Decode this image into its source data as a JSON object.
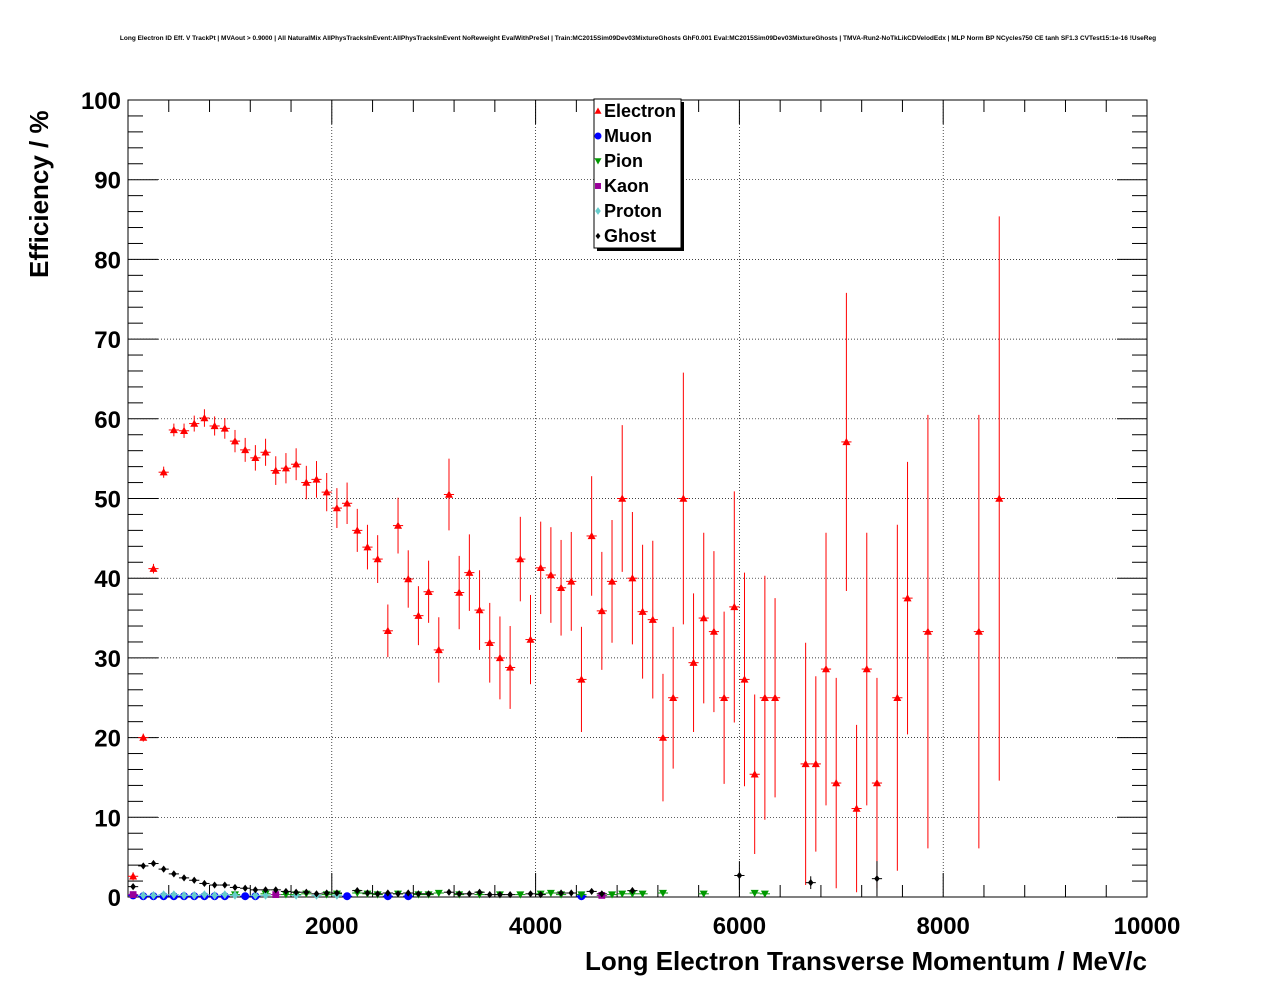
{
  "chart_data": {
    "type": "scatter",
    "title": "Long Electron ID Eff. V TrackPt | MVAout > 0.9000 | All NaturalMix AllPhysTracksInEvent:AllPhysTracksInEvent NoReweight EvalWithPreSel | Train:MC2015Sim09Dev03MixtureGhosts GhF0.001 Eval:MC2015Sim09Dev03MixtureGhosts | TMVA-Run2-NoTkLikCDVelodEdx | MLP Norm BP NCycles750 CE tanh SF1.3 CVTest15:1e-16 !UseReg",
    "xlabel": "Long Electron Transverse Momentum / MeV/c",
    "ylabel": "Efficiency / %",
    "xlim": [
      0,
      10000
    ],
    "ylim": [
      0,
      100
    ],
    "x_ticks": [
      2000,
      4000,
      6000,
      8000,
      10000
    ],
    "x_tick_labels": [
      "2000",
      "4000",
      "6000",
      "8000",
      "10000"
    ],
    "y_ticks": [
      0,
      10,
      20,
      30,
      40,
      50,
      60,
      70,
      80,
      90,
      100
    ],
    "y_tick_labels": [
      "0",
      "10",
      "20",
      "30",
      "40",
      "50",
      "60",
      "70",
      "80",
      "90",
      "100"
    ],
    "grid": true,
    "legend_position": "top-center",
    "series": [
      {
        "name": "Electron",
        "color": "#ff0000",
        "marker": "triangle-up",
        "points": [
          [
            50,
            2.6,
            0.5
          ],
          [
            150,
            20,
            0.5
          ],
          [
            250,
            41.2,
            0.6
          ],
          [
            350,
            53.3,
            0.7
          ],
          [
            450,
            58.6,
            0.8
          ],
          [
            550,
            58.5,
            0.9
          ],
          [
            650,
            59.4,
            1.0
          ],
          [
            750,
            60.1,
            1.1
          ],
          [
            850,
            59.1,
            1.2
          ],
          [
            950,
            58.8,
            1.3
          ],
          [
            1050,
            57.2,
            1.4
          ],
          [
            1150,
            56.1,
            1.5
          ],
          [
            1250,
            55.1,
            1.6
          ],
          [
            1350,
            55.8,
            1.7
          ],
          [
            1450,
            53.5,
            1.8
          ],
          [
            1550,
            53.8,
            1.9
          ],
          [
            1650,
            54.3,
            2.0
          ],
          [
            1750,
            52,
            2.1
          ],
          [
            1850,
            52.4,
            2.3
          ],
          [
            1950,
            50.8,
            2.4
          ],
          [
            2050,
            48.8,
            2.5
          ],
          [
            2150,
            49.4,
            2.6
          ],
          [
            2250,
            46,
            2.7
          ],
          [
            2350,
            43.9,
            2.8
          ],
          [
            2450,
            42.4,
            3.0
          ],
          [
            2550,
            33.4,
            3.3
          ],
          [
            2650,
            46.6,
            3.5
          ],
          [
            2750,
            39.9,
            3.6
          ],
          [
            2850,
            35.3,
            3.7
          ],
          [
            2950,
            38.3,
            3.9
          ],
          [
            3050,
            31,
            4.1
          ],
          [
            3150,
            50.5,
            4.5
          ],
          [
            3250,
            38.2,
            4.6
          ],
          [
            3350,
            40.7,
            4.8
          ],
          [
            3450,
            36,
            5.0
          ],
          [
            3550,
            31.9,
            5.0
          ],
          [
            3650,
            30,
            5.2
          ],
          [
            3750,
            28.8,
            5.2
          ],
          [
            3850,
            42.4,
            5.3
          ],
          [
            3950,
            32.3,
            5.6
          ],
          [
            4050,
            41.3,
            5.8
          ],
          [
            4150,
            40.4,
            6.0
          ],
          [
            4250,
            38.8,
            6.0
          ],
          [
            4350,
            39.6,
            6.2
          ],
          [
            4450,
            27.3,
            6.6
          ],
          [
            4550,
            45.3,
            7.5
          ],
          [
            4650,
            35.9,
            7.4
          ],
          [
            4750,
            39.6,
            7.7
          ],
          [
            4850,
            50,
            9.2
          ],
          [
            4950,
            40,
            8.3
          ],
          [
            5050,
            35.8,
            8.4
          ],
          [
            5150,
            34.8,
            9.9
          ],
          [
            5250,
            20,
            8.0
          ],
          [
            5350,
            25,
            8.9
          ],
          [
            5450,
            50,
            15.8
          ],
          [
            5550,
            29.4,
            8.7
          ],
          [
            5650,
            35,
            10.7
          ],
          [
            5750,
            33.3,
            10.1
          ],
          [
            5850,
            25,
            10.8
          ],
          [
            5950,
            36.4,
            14.5
          ],
          [
            6050,
            27.3,
            13.4
          ],
          [
            6150,
            15.4,
            10.0
          ],
          [
            6250,
            25,
            15.3
          ],
          [
            6350,
            25,
            12.5
          ],
          [
            6650,
            16.7,
            15.2
          ],
          [
            6750,
            16.7,
            11.0
          ],
          [
            6850,
            28.6,
            17.1
          ],
          [
            6950,
            14.3,
            13.2
          ],
          [
            7050,
            57.1,
            18.7
          ],
          [
            7150,
            11.1,
            10.5
          ],
          [
            7250,
            28.6,
            17.1
          ],
          [
            7350,
            14.3,
            13.2
          ],
          [
            7550,
            25,
            21.7
          ],
          [
            7650,
            37.5,
            17.1
          ],
          [
            7850,
            33.3,
            27.2
          ],
          [
            8350,
            33.3,
            27.2
          ],
          [
            8550,
            50,
            35.4
          ]
        ]
      },
      {
        "name": "Muon",
        "color": "#0000ff",
        "marker": "circle",
        "points": [
          [
            50,
            0.2,
            0.05
          ],
          [
            150,
            0.1,
            0.05
          ],
          [
            250,
            0.1,
            0.05
          ],
          [
            350,
            0.1,
            0.05
          ],
          [
            450,
            0.1,
            0.05
          ],
          [
            550,
            0.1,
            0.05
          ],
          [
            650,
            0.1,
            0.05
          ],
          [
            750,
            0.1,
            0.05
          ],
          [
            850,
            0.1,
            0.05
          ],
          [
            950,
            0.1,
            0.05
          ],
          [
            1150,
            0.1,
            0.05
          ],
          [
            1250,
            0.1,
            0.05
          ],
          [
            2150,
            0.1,
            0.1
          ],
          [
            2550,
            0.1,
            0.1
          ],
          [
            2750,
            0.1,
            0.1
          ],
          [
            4450,
            0.1,
            0.2
          ]
        ]
      },
      {
        "name": "Pion",
        "color": "#009900",
        "marker": "triangle-down",
        "points": [
          [
            1050,
            0.3,
            0.05
          ],
          [
            1350,
            0.4,
            0.05
          ],
          [
            1550,
            0.3,
            0.05
          ],
          [
            1650,
            0.3,
            0.05
          ],
          [
            1750,
            0.4,
            0.05
          ],
          [
            1950,
            0.3,
            0.05
          ],
          [
            2050,
            0.4,
            0.05
          ],
          [
            2250,
            0.5,
            0.1
          ],
          [
            2350,
            0.4,
            0.1
          ],
          [
            2450,
            0.3,
            0.1
          ],
          [
            2650,
            0.4,
            0.1
          ],
          [
            2850,
            0.3,
            0.1
          ],
          [
            2950,
            0.3,
            0.1
          ],
          [
            3050,
            0.5,
            0.1
          ],
          [
            3250,
            0.3,
            0.1
          ],
          [
            3450,
            0.3,
            0.1
          ],
          [
            3650,
            0.3,
            0.1
          ],
          [
            3850,
            0.3,
            0.1
          ],
          [
            4050,
            0.4,
            0.1
          ],
          [
            4150,
            0.5,
            0.1
          ],
          [
            4250,
            0.3,
            0.1
          ],
          [
            4450,
            0.3,
            0.1
          ],
          [
            4750,
            0.3,
            0.1
          ],
          [
            4850,
            0.4,
            0.1
          ],
          [
            4950,
            0.4,
            0.1
          ],
          [
            5050,
            0.4,
            0.1
          ],
          [
            5250,
            0.5,
            0.2
          ],
          [
            5650,
            0.4,
            0.2
          ],
          [
            6150,
            0.5,
            0.2
          ],
          [
            6250,
            0.4,
            0.2
          ]
        ]
      },
      {
        "name": "Kaon",
        "color": "#990099",
        "marker": "square",
        "points": [
          [
            50,
            0.3,
            0.05
          ],
          [
            1450,
            0.3,
            0.05
          ],
          [
            4650,
            0.2,
            0.1
          ]
        ]
      },
      {
        "name": "Proton",
        "color": "#66cccc",
        "marker": "diamond",
        "points": [
          [
            150,
            0.2,
            0.05
          ],
          [
            250,
            0.2,
            0.05
          ],
          [
            350,
            0.3,
            0.05
          ],
          [
            450,
            0.3,
            0.05
          ],
          [
            550,
            0.2,
            0.05
          ],
          [
            650,
            0.2,
            0.05
          ],
          [
            750,
            0.3,
            0.05
          ],
          [
            850,
            0.2,
            0.05
          ],
          [
            950,
            0.3,
            0.05
          ],
          [
            1050,
            0.2,
            0.05
          ],
          [
            1250,
            0.2,
            0.05
          ],
          [
            1350,
            0.2,
            0.05
          ],
          [
            1650,
            0.2,
            0.05
          ],
          [
            1850,
            0.2,
            0.05
          ],
          [
            2050,
            0.2,
            0.05
          ]
        ]
      },
      {
        "name": "Ghost",
        "color": "#000000",
        "marker": "star",
        "points": [
          [
            50,
            1.3,
            0.1
          ],
          [
            150,
            3.9,
            0.2
          ],
          [
            250,
            4.2,
            0.2
          ],
          [
            350,
            3.5,
            0.2
          ],
          [
            450,
            2.9,
            0.2
          ],
          [
            550,
            2.4,
            0.2
          ],
          [
            650,
            2.1,
            0.2
          ],
          [
            750,
            1.7,
            0.2
          ],
          [
            850,
            1.5,
            0.2
          ],
          [
            950,
            1.5,
            0.2
          ],
          [
            1050,
            1.2,
            0.2
          ],
          [
            1150,
            1.1,
            0.2
          ],
          [
            1250,
            0.9,
            0.2
          ],
          [
            1350,
            0.9,
            0.2
          ],
          [
            1450,
            0.9,
            0.2
          ],
          [
            1550,
            0.7,
            0.2
          ],
          [
            1650,
            0.6,
            0.2
          ],
          [
            1750,
            0.6,
            0.2
          ],
          [
            1850,
            0.4,
            0.2
          ],
          [
            1950,
            0.5,
            0.2
          ],
          [
            2050,
            0.5,
            0.2
          ],
          [
            2250,
            0.8,
            0.2
          ],
          [
            2350,
            0.5,
            0.2
          ],
          [
            2450,
            0.4,
            0.2
          ],
          [
            2550,
            0.5,
            0.2
          ],
          [
            2650,
            0.4,
            0.2
          ],
          [
            2750,
            0.5,
            0.2
          ],
          [
            2850,
            0.4,
            0.2
          ],
          [
            2950,
            0.4,
            0.2
          ],
          [
            3150,
            0.6,
            0.2
          ],
          [
            3250,
            0.4,
            0.2
          ],
          [
            3350,
            0.4,
            0.2
          ],
          [
            3450,
            0.6,
            0.2
          ],
          [
            3550,
            0.3,
            0.2
          ],
          [
            3650,
            0.3,
            0.2
          ],
          [
            3750,
            0.3,
            0.2
          ],
          [
            3950,
            0.4,
            0.2
          ],
          [
            4050,
            0.3,
            0.2
          ],
          [
            4250,
            0.5,
            0.2
          ],
          [
            4350,
            0.5,
            0.2
          ],
          [
            4550,
            0.7,
            0.3
          ],
          [
            4650,
            0.4,
            0.3
          ],
          [
            4950,
            0.8,
            0.4
          ],
          [
            6000,
            2.7,
            1.8
          ],
          [
            6700,
            1.8,
            0.8
          ],
          [
            7350,
            2.3,
            2.2
          ]
        ]
      }
    ]
  }
}
